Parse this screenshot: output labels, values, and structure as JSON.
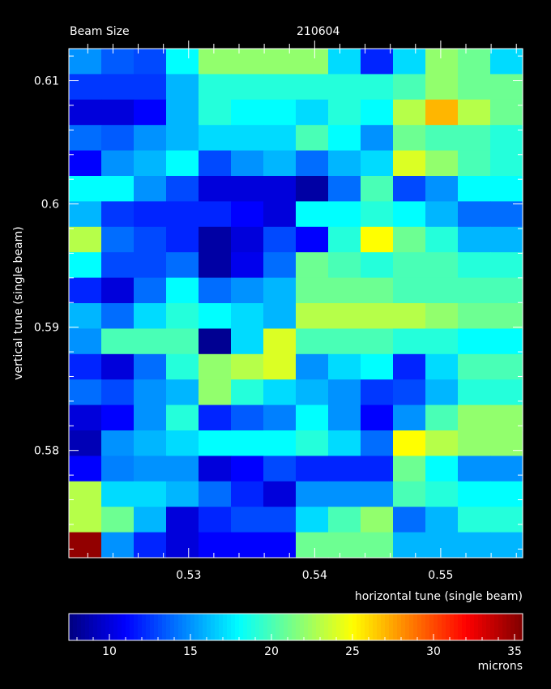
{
  "chart_data": {
    "type": "heatmap",
    "title_left": "Beam Size",
    "title_right": "210604",
    "xlabel": "horizontal tune (single beam)",
    "ylabel": "vertical tune (single beam)",
    "colorbar_label": "microns",
    "x_range": [
      0.5205,
      0.5565
    ],
    "y_range": [
      0.5713,
      0.6126
    ],
    "x_ticks": [
      0.53,
      0.54,
      0.55
    ],
    "x_tick_labels": [
      "0.53",
      "0.54",
      "0.55"
    ],
    "y_ticks": [
      0.58,
      0.59,
      0.6,
      0.61
    ],
    "y_tick_labels": [
      "0.58",
      "0.59",
      "0.6",
      "0.61"
    ],
    "color_range": [
      7.5,
      35.5
    ],
    "color_ticks": [
      10,
      15,
      20,
      25,
      30,
      35
    ],
    "color_tick_labels": [
      "10",
      "15",
      "20",
      "25",
      "30",
      "35"
    ],
    "colormap": "jet",
    "n_cols": 14,
    "n_rows": 20,
    "rows_top_to_bottom": [
      [
        15,
        13.5,
        13,
        18,
        22,
        22,
        22,
        22,
        17,
        12,
        17,
        22,
        21,
        17
      ],
      [
        12.5,
        12.5,
        12.5,
        16,
        19,
        19,
        19,
        19,
        19,
        19,
        20,
        22,
        21,
        21
      ],
      [
        10,
        10,
        11,
        16,
        19,
        18,
        18,
        17,
        19,
        18,
        23,
        27,
        23,
        21
      ],
      [
        14,
        13.5,
        15,
        16,
        17,
        17,
        17,
        20,
        18,
        15,
        21,
        20,
        20,
        19
      ],
      [
        11,
        15,
        16,
        18,
        13,
        15,
        16,
        14,
        16,
        17,
        24,
        22,
        20,
        19
      ],
      [
        18,
        18,
        15,
        13,
        10,
        10,
        10,
        8.5,
        14,
        20,
        13,
        15,
        18,
        18
      ],
      [
        16,
        12.5,
        12,
        12,
        12,
        11,
        10,
        18,
        18,
        19,
        18,
        16,
        14,
        14
      ],
      [
        23,
        14,
        13,
        12,
        8.5,
        10,
        13,
        11,
        19,
        25,
        21,
        19,
        16,
        16
      ],
      [
        18,
        13,
        13,
        14,
        8.5,
        10.5,
        14,
        21,
        20,
        19,
        20,
        20,
        19,
        19
      ],
      [
        12,
        10,
        14,
        18,
        14,
        15,
        16,
        21,
        21,
        21,
        20,
        20,
        20,
        20
      ],
      [
        16,
        14,
        17,
        19,
        18,
        17,
        16,
        23,
        23,
        23,
        23,
        22,
        21,
        21
      ],
      [
        15,
        20,
        20,
        20,
        8,
        17,
        24,
        20,
        20,
        20,
        19,
        19,
        18,
        18
      ],
      [
        12,
        10,
        14,
        19,
        22,
        23,
        24,
        15,
        17,
        18,
        12,
        17,
        20,
        20
      ],
      [
        14,
        13,
        15,
        16,
        22,
        19,
        17,
        16,
        15,
        12.5,
        13,
        16,
        19,
        19
      ],
      [
        10,
        11,
        15,
        19,
        12,
        13.5,
        14.5,
        18,
        15,
        11,
        15,
        20,
        22,
        22
      ],
      [
        9,
        15,
        16,
        17,
        18,
        18,
        18,
        19,
        17,
        14,
        25,
        23,
        22,
        22
      ],
      [
        11,
        14.5,
        15,
        15,
        10,
        11,
        13,
        12,
        12,
        12,
        21,
        18,
        15,
        15
      ],
      [
        23,
        17,
        17,
        16,
        14,
        12,
        10,
        15,
        15,
        15,
        20,
        19,
        18,
        18
      ],
      [
        23,
        21,
        16,
        10,
        12,
        13,
        13,
        17,
        20,
        22,
        14,
        16,
        19,
        19
      ],
      [
        35,
        15,
        12,
        10,
        11,
        11,
        11,
        21,
        21,
        21,
        16,
        16,
        16,
        16
      ]
    ]
  }
}
